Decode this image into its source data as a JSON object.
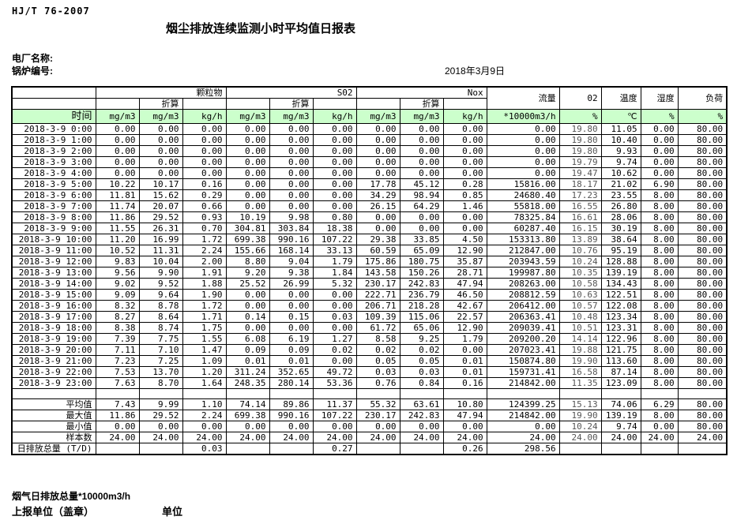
{
  "meta": {
    "standard": "HJ/T  76-2007",
    "title": "烟尘排放连续监测小时平均值日报表",
    "plant_label": "电厂名称:",
    "boiler_label": "锅炉编号:",
    "date": "2018年3月9日"
  },
  "table": {
    "group_pm": "颗粒物",
    "group_so2": "S02",
    "group_nox": "Nox",
    "converted_label": "折算",
    "time_header": "时间",
    "flow_header": "流量",
    "o2_header": "02",
    "temp_header": "温度",
    "humidity_header": "湿度",
    "load_header": "负荷",
    "units": {
      "mgm3": "mg/m3",
      "kgh": "kg/h",
      "flow": "*10000m3/h",
      "percent": "%",
      "celsius": "℃"
    },
    "rows": [
      {
        "time": "2018-3-9 0:00",
        "values": [
          "0.00",
          "0.00",
          "0.00",
          "0.00",
          "0.00",
          "0.00",
          "0.00",
          "0.00",
          "0.00",
          "0.00",
          "19.80",
          "11.05",
          "0.00",
          "80.00"
        ]
      },
      {
        "time": "2018-3-9 1:00",
        "values": [
          "0.00",
          "0.00",
          "0.00",
          "0.00",
          "0.00",
          "0.00",
          "0.00",
          "0.00",
          "0.00",
          "0.00",
          "19.80",
          "10.40",
          "0.00",
          "80.00"
        ]
      },
      {
        "time": "2018-3-9 2:00",
        "values": [
          "0.00",
          "0.00",
          "0.00",
          "0.00",
          "0.00",
          "0.00",
          "0.00",
          "0.00",
          "0.00",
          "0.00",
          "19.80",
          "9.93",
          "0.00",
          "80.00"
        ]
      },
      {
        "time": "2018-3-9 3:00",
        "values": [
          "0.00",
          "0.00",
          "0.00",
          "0.00",
          "0.00",
          "0.00",
          "0.00",
          "0.00",
          "0.00",
          "0.00",
          "19.79",
          "9.74",
          "0.00",
          "80.00"
        ]
      },
      {
        "time": "2018-3-9 4:00",
        "values": [
          "0.00",
          "0.00",
          "0.00",
          "0.00",
          "0.00",
          "0.00",
          "0.00",
          "0.00",
          "0.00",
          "0.00",
          "19.47",
          "10.62",
          "0.00",
          "80.00"
        ]
      },
      {
        "time": "2018-3-9 5:00",
        "values": [
          "10.22",
          "10.17",
          "0.16",
          "0.00",
          "0.00",
          "0.00",
          "17.78",
          "45.12",
          "0.28",
          "15816.00",
          "18.17",
          "21.02",
          "6.90",
          "80.00"
        ]
      },
      {
        "time": "2018-3-9 6:00",
        "values": [
          "11.81",
          "15.62",
          "0.29",
          "0.00",
          "0.00",
          "0.00",
          "34.29",
          "98.94",
          "0.85",
          "24680.40",
          "17.23",
          "23.55",
          "8.00",
          "80.00"
        ]
      },
      {
        "time": "2018-3-9 7:00",
        "values": [
          "11.74",
          "20.07",
          "0.66",
          "0.00",
          "0.00",
          "0.00",
          "26.15",
          "64.29",
          "1.46",
          "55818.00",
          "16.55",
          "26.80",
          "8.00",
          "80.00"
        ]
      },
      {
        "time": "2018-3-9 8:00",
        "values": [
          "11.86",
          "29.52",
          "0.93",
          "10.19",
          "9.98",
          "0.80",
          "0.00",
          "0.00",
          "0.00",
          "78325.84",
          "16.61",
          "28.06",
          "8.00",
          "80.00"
        ]
      },
      {
        "time": "2018-3-9 9:00",
        "values": [
          "11.55",
          "26.31",
          "0.70",
          "304.81",
          "303.84",
          "18.38",
          "0.00",
          "0.00",
          "0.00",
          "60287.40",
          "16.15",
          "30.19",
          "8.00",
          "80.00"
        ]
      },
      {
        "time": "2018-3-9 10:00",
        "values": [
          "11.20",
          "16.99",
          "1.72",
          "699.38",
          "990.16",
          "107.22",
          "29.38",
          "33.85",
          "4.50",
          "153313.80",
          "13.89",
          "38.64",
          "8.00",
          "80.00"
        ]
      },
      {
        "time": "2018-3-9 11:00",
        "values": [
          "10.52",
          "11.31",
          "2.24",
          "155.66",
          "168.14",
          "33.13",
          "60.59",
          "65.09",
          "12.90",
          "212847.00",
          "10.76",
          "95.19",
          "8.00",
          "80.00"
        ]
      },
      {
        "time": "2018-3-9 12:00",
        "values": [
          "9.83",
          "10.04",
          "2.00",
          "8.80",
          "9.04",
          "1.79",
          "175.86",
          "180.75",
          "35.87",
          "203943.59",
          "10.24",
          "128.88",
          "8.00",
          "80.00"
        ]
      },
      {
        "time": "2018-3-9 13:00",
        "values": [
          "9.56",
          "9.90",
          "1.91",
          "9.20",
          "9.38",
          "1.84",
          "143.58",
          "150.26",
          "28.71",
          "199987.80",
          "10.35",
          "139.19",
          "8.00",
          "80.00"
        ]
      },
      {
        "time": "2018-3-9 14:00",
        "values": [
          "9.02",
          "9.52",
          "1.88",
          "25.52",
          "26.99",
          "5.32",
          "230.17",
          "242.83",
          "47.94",
          "208263.00",
          "10.58",
          "134.43",
          "8.00",
          "80.00"
        ]
      },
      {
        "time": "2018-3-9 15:00",
        "values": [
          "9.09",
          "9.64",
          "1.90",
          "0.00",
          "0.00",
          "0.00",
          "222.71",
          "236.79",
          "46.50",
          "208812.59",
          "10.63",
          "122.51",
          "8.00",
          "80.00"
        ]
      },
      {
        "time": "2018-3-9 16:00",
        "values": [
          "8.32",
          "8.78",
          "1.72",
          "0.00",
          "0.00",
          "0.00",
          "206.71",
          "218.28",
          "42.67",
          "206412.00",
          "10.57",
          "122.08",
          "8.00",
          "80.00"
        ]
      },
      {
        "time": "2018-3-9 17:00",
        "values": [
          "8.27",
          "8.64",
          "1.71",
          "0.14",
          "0.15",
          "0.03",
          "109.39",
          "115.06",
          "22.57",
          "206363.41",
          "10.48",
          "123.34",
          "8.00",
          "80.00"
        ]
      },
      {
        "time": "2018-3-9 18:00",
        "values": [
          "8.38",
          "8.74",
          "1.75",
          "0.00",
          "0.00",
          "0.00",
          "61.72",
          "65.06",
          "12.90",
          "209039.41",
          "10.51",
          "123.31",
          "8.00",
          "80.00"
        ]
      },
      {
        "time": "2018-3-9 19:00",
        "values": [
          "7.39",
          "7.75",
          "1.55",
          "6.08",
          "6.19",
          "1.27",
          "8.58",
          "9.25",
          "1.79",
          "209200.20",
          "14.14",
          "122.96",
          "8.00",
          "80.00"
        ]
      },
      {
        "time": "2018-3-9 20:00",
        "values": [
          "7.11",
          "7.10",
          "1.47",
          "0.09",
          "0.09",
          "0.02",
          "0.02",
          "0.02",
          "0.00",
          "207023.41",
          "19.88",
          "121.75",
          "8.00",
          "80.00"
        ]
      },
      {
        "time": "2018-3-9 21:00",
        "values": [
          "7.23",
          "7.25",
          "1.09",
          "0.01",
          "0.01",
          "0.00",
          "0.05",
          "0.05",
          "0.01",
          "150874.80",
          "19.90",
          "113.60",
          "8.00",
          "80.00"
        ]
      },
      {
        "time": "2018-3-9 22:00",
        "values": [
          "7.53",
          "13.70",
          "1.20",
          "311.24",
          "352.65",
          "49.72",
          "0.03",
          "0.03",
          "0.01",
          "159731.41",
          "16.58",
          "87.14",
          "8.00",
          "80.00"
        ]
      },
      {
        "time": "2018-3-9 23:00",
        "values": [
          "7.63",
          "8.70",
          "1.64",
          "248.35",
          "280.14",
          "53.36",
          "0.76",
          "0.84",
          "0.16",
          "214842.00",
          "11.35",
          "123.09",
          "8.00",
          "80.00"
        ]
      }
    ],
    "summary": [
      {
        "label": "平均值",
        "values": [
          "7.43",
          "9.99",
          "1.10",
          "74.14",
          "89.86",
          "11.37",
          "55.32",
          "63.61",
          "10.80",
          "124399.25",
          "15.13",
          "74.06",
          "6.29",
          "80.00"
        ]
      },
      {
        "label": "最大值",
        "values": [
          "11.86",
          "29.52",
          "2.24",
          "699.38",
          "990.16",
          "107.22",
          "230.17",
          "242.83",
          "47.94",
          "214842.00",
          "19.90",
          "139.19",
          "8.00",
          "80.00"
        ]
      },
      {
        "label": "最小值",
        "values": [
          "0.00",
          "0.00",
          "0.00",
          "0.00",
          "0.00",
          "0.00",
          "0.00",
          "0.00",
          "0.00",
          "0.00",
          "10.24",
          "9.74",
          "0.00",
          "80.00"
        ]
      },
      {
        "label": "样本数",
        "values": [
          "24.00",
          "24.00",
          "24.00",
          "24.00",
          "24.00",
          "24.00",
          "24.00",
          "24.00",
          "24.00",
          "24.00",
          "24.00",
          "24.00",
          "24.00",
          "24.00"
        ]
      }
    ],
    "total_row": {
      "label": "日排放总量 (T/D)",
      "values": [
        "",
        "",
        "0.03",
        "",
        "",
        "0.27",
        "",
        "",
        "0.26",
        "298.56",
        "",
        "",
        "",
        ""
      ]
    }
  },
  "footer": {
    "flue_gas_total": "烟气日排放总量*10000m3/h",
    "reporting_unit": "上报单位（盖章）",
    "unit": "单位"
  },
  "colors": {
    "header_green": "#ccffcc",
    "border": "#000000"
  }
}
